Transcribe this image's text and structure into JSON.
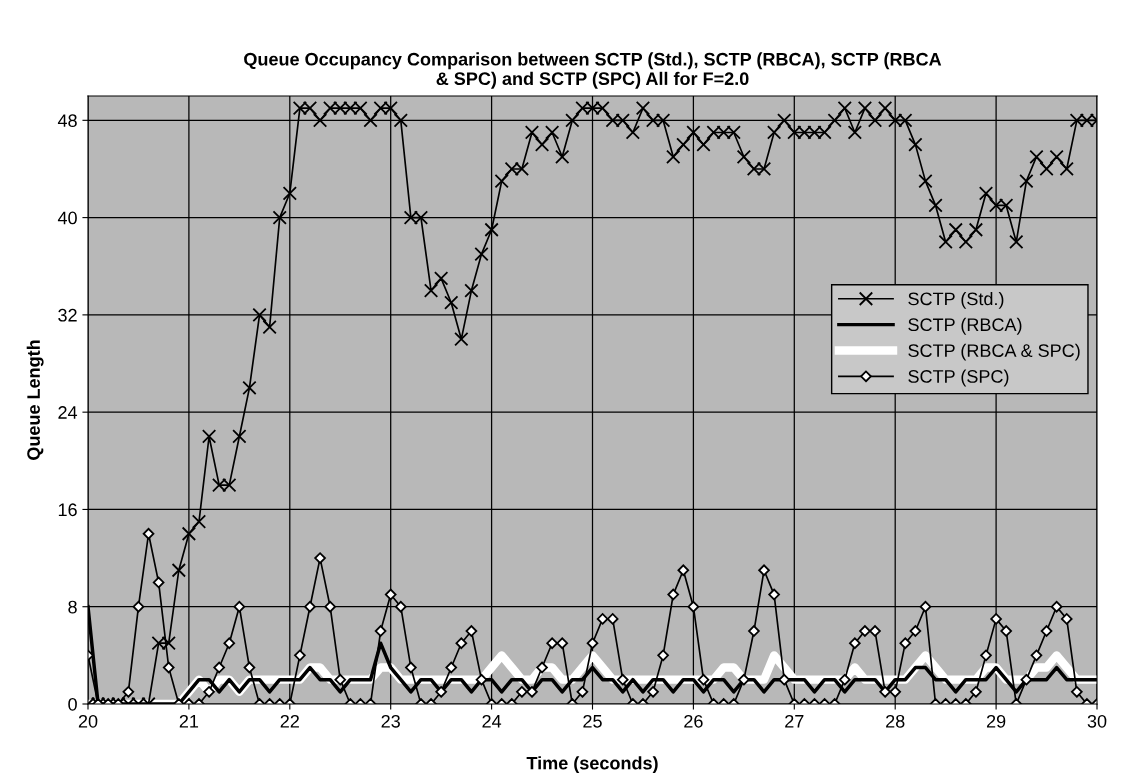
{
  "chart_data": {
    "type": "line",
    "title": "Queue Occupancy Comparison between SCTP (Std.), SCTP (RBCA), SCTP (RBCA\n& SPC) and SCTP (SPC) All for F=2.0",
    "xlabel": "Time (seconds)",
    "ylabel": "Queue Length",
    "x": [
      20.0,
      20.1,
      20.2,
      20.3,
      20.4,
      20.5,
      20.6,
      20.7,
      20.8,
      20.9,
      21.0,
      21.1,
      21.2,
      21.3,
      21.4,
      21.5,
      21.6,
      21.7,
      21.8,
      21.9,
      22.0,
      22.1,
      22.2,
      22.3,
      22.4,
      22.5,
      22.6,
      22.7,
      22.8,
      22.9,
      23.0,
      23.1,
      23.2,
      23.3,
      23.4,
      23.5,
      23.6,
      23.7,
      23.8,
      23.9,
      24.0,
      24.1,
      24.2,
      24.3,
      24.4,
      24.5,
      24.6,
      24.7,
      24.8,
      24.9,
      25.0,
      25.1,
      25.2,
      25.3,
      25.4,
      25.5,
      25.6,
      25.7,
      25.8,
      25.9,
      26.0,
      26.1,
      26.2,
      26.3,
      26.4,
      26.5,
      26.6,
      26.7,
      26.8,
      26.9,
      27.0,
      27.1,
      27.2,
      27.3,
      27.4,
      27.5,
      27.6,
      27.7,
      27.8,
      27.9,
      28.0,
      28.1,
      28.2,
      28.3,
      28.4,
      28.5,
      28.6,
      28.7,
      28.8,
      28.9,
      29.0,
      29.1,
      29.2,
      29.3,
      29.4,
      29.5,
      29.6,
      29.7,
      29.8,
      29.9,
      30.0
    ],
    "series": [
      {
        "name": "SCTP (Std.)",
        "color": "#000000",
        "marker": "cross",
        "values": [
          0,
          0,
          0,
          0,
          0,
          0,
          0,
          5,
          5,
          11,
          14,
          15,
          22,
          18,
          18,
          22,
          26,
          32,
          31,
          40,
          42,
          49,
          49,
          48,
          49,
          49,
          49,
          49,
          48,
          49,
          49,
          48,
          40,
          40,
          34,
          35,
          33,
          30,
          34,
          37,
          39,
          43,
          44,
          44,
          47,
          46,
          47,
          45,
          48,
          49,
          49,
          49,
          48,
          48,
          47,
          49,
          48,
          48,
          45,
          46,
          47,
          46,
          47,
          47,
          47,
          45,
          44,
          44,
          47,
          48,
          47,
          47,
          47,
          47,
          48,
          49,
          47,
          49,
          48,
          49,
          48,
          48,
          46,
          43,
          41,
          38,
          39,
          38,
          39,
          42,
          41,
          41,
          38,
          43,
          45,
          44,
          45,
          44,
          48,
          48,
          48
        ]
      },
      {
        "name": "SCTP (RBCA)",
        "color": "#000000",
        "marker": "none",
        "values": [
          8,
          0,
          0,
          0,
          0,
          0,
          0,
          0,
          0,
          0,
          1,
          2,
          2,
          1,
          2,
          1,
          2,
          2,
          1,
          2,
          2,
          2,
          3,
          2,
          2,
          1,
          2,
          2,
          2,
          5,
          3,
          2,
          1,
          2,
          2,
          1,
          2,
          2,
          1,
          2,
          2,
          1,
          2,
          2,
          1,
          2,
          2,
          1,
          2,
          2,
          3,
          2,
          2,
          1,
          2,
          1,
          2,
          2,
          1,
          2,
          2,
          1,
          2,
          2,
          1,
          2,
          2,
          1,
          2,
          2,
          2,
          2,
          1,
          2,
          2,
          1,
          2,
          2,
          2,
          1,
          2,
          2,
          3,
          3,
          2,
          2,
          1,
          2,
          2,
          2,
          3,
          2,
          1,
          2,
          2,
          2,
          3,
          2,
          2,
          2,
          2
        ]
      },
      {
        "name": "SCTP (RBCA & SPC)",
        "color": "#ffffff",
        "marker": "none",
        "values": [
          0,
          0,
          0,
          0,
          0,
          0,
          0,
          0,
          0,
          0,
          1,
          2,
          1,
          2,
          2,
          1,
          2,
          2,
          2,
          2,
          2,
          2,
          3,
          3,
          2,
          2,
          2,
          2,
          2,
          3,
          3,
          2,
          2,
          2,
          2,
          2,
          2,
          2,
          2,
          2,
          3,
          4,
          3,
          2,
          2,
          3,
          3,
          2,
          2,
          3,
          4,
          3,
          2,
          2,
          2,
          2,
          2,
          2,
          2,
          2,
          2,
          2,
          2,
          3,
          3,
          2,
          2,
          2,
          4,
          3,
          2,
          2,
          2,
          2,
          2,
          2,
          3,
          2,
          2,
          2,
          2,
          2,
          3,
          4,
          3,
          2,
          2,
          2,
          2,
          3,
          3,
          2,
          2,
          2,
          3,
          3,
          4,
          3,
          2,
          2,
          2
        ]
      },
      {
        "name": "SCTP (SPC)",
        "color": "#000000",
        "marker": "diamond",
        "values": [
          4,
          0,
          0,
          0,
          1,
          8,
          14,
          10,
          3,
          0,
          0,
          0,
          1,
          3,
          5,
          8,
          3,
          0,
          0,
          0,
          0,
          4,
          8,
          12,
          8,
          2,
          0,
          0,
          0,
          6,
          9,
          8,
          3,
          0,
          0,
          1,
          3,
          5,
          6,
          2,
          0,
          0,
          0,
          1,
          1,
          3,
          5,
          5,
          0,
          1,
          5,
          7,
          7,
          2,
          0,
          0,
          1,
          4,
          9,
          11,
          8,
          2,
          0,
          0,
          0,
          2,
          6,
          11,
          9,
          2,
          0,
          0,
          0,
          0,
          0,
          2,
          5,
          6,
          6,
          1,
          1,
          5,
          6,
          8,
          0,
          0,
          0,
          0,
          1,
          4,
          7,
          6,
          0,
          2,
          4,
          6,
          8,
          7,
          1,
          0,
          0
        ]
      }
    ],
    "xlim": [
      20,
      30
    ],
    "xticks": [
      20,
      21,
      22,
      23,
      24,
      25,
      26,
      27,
      28,
      29,
      30
    ],
    "ylim": [
      0,
      50
    ],
    "yticks": [
      0,
      8,
      16,
      24,
      32,
      40,
      48
    ],
    "grid": true,
    "legend": "right"
  }
}
